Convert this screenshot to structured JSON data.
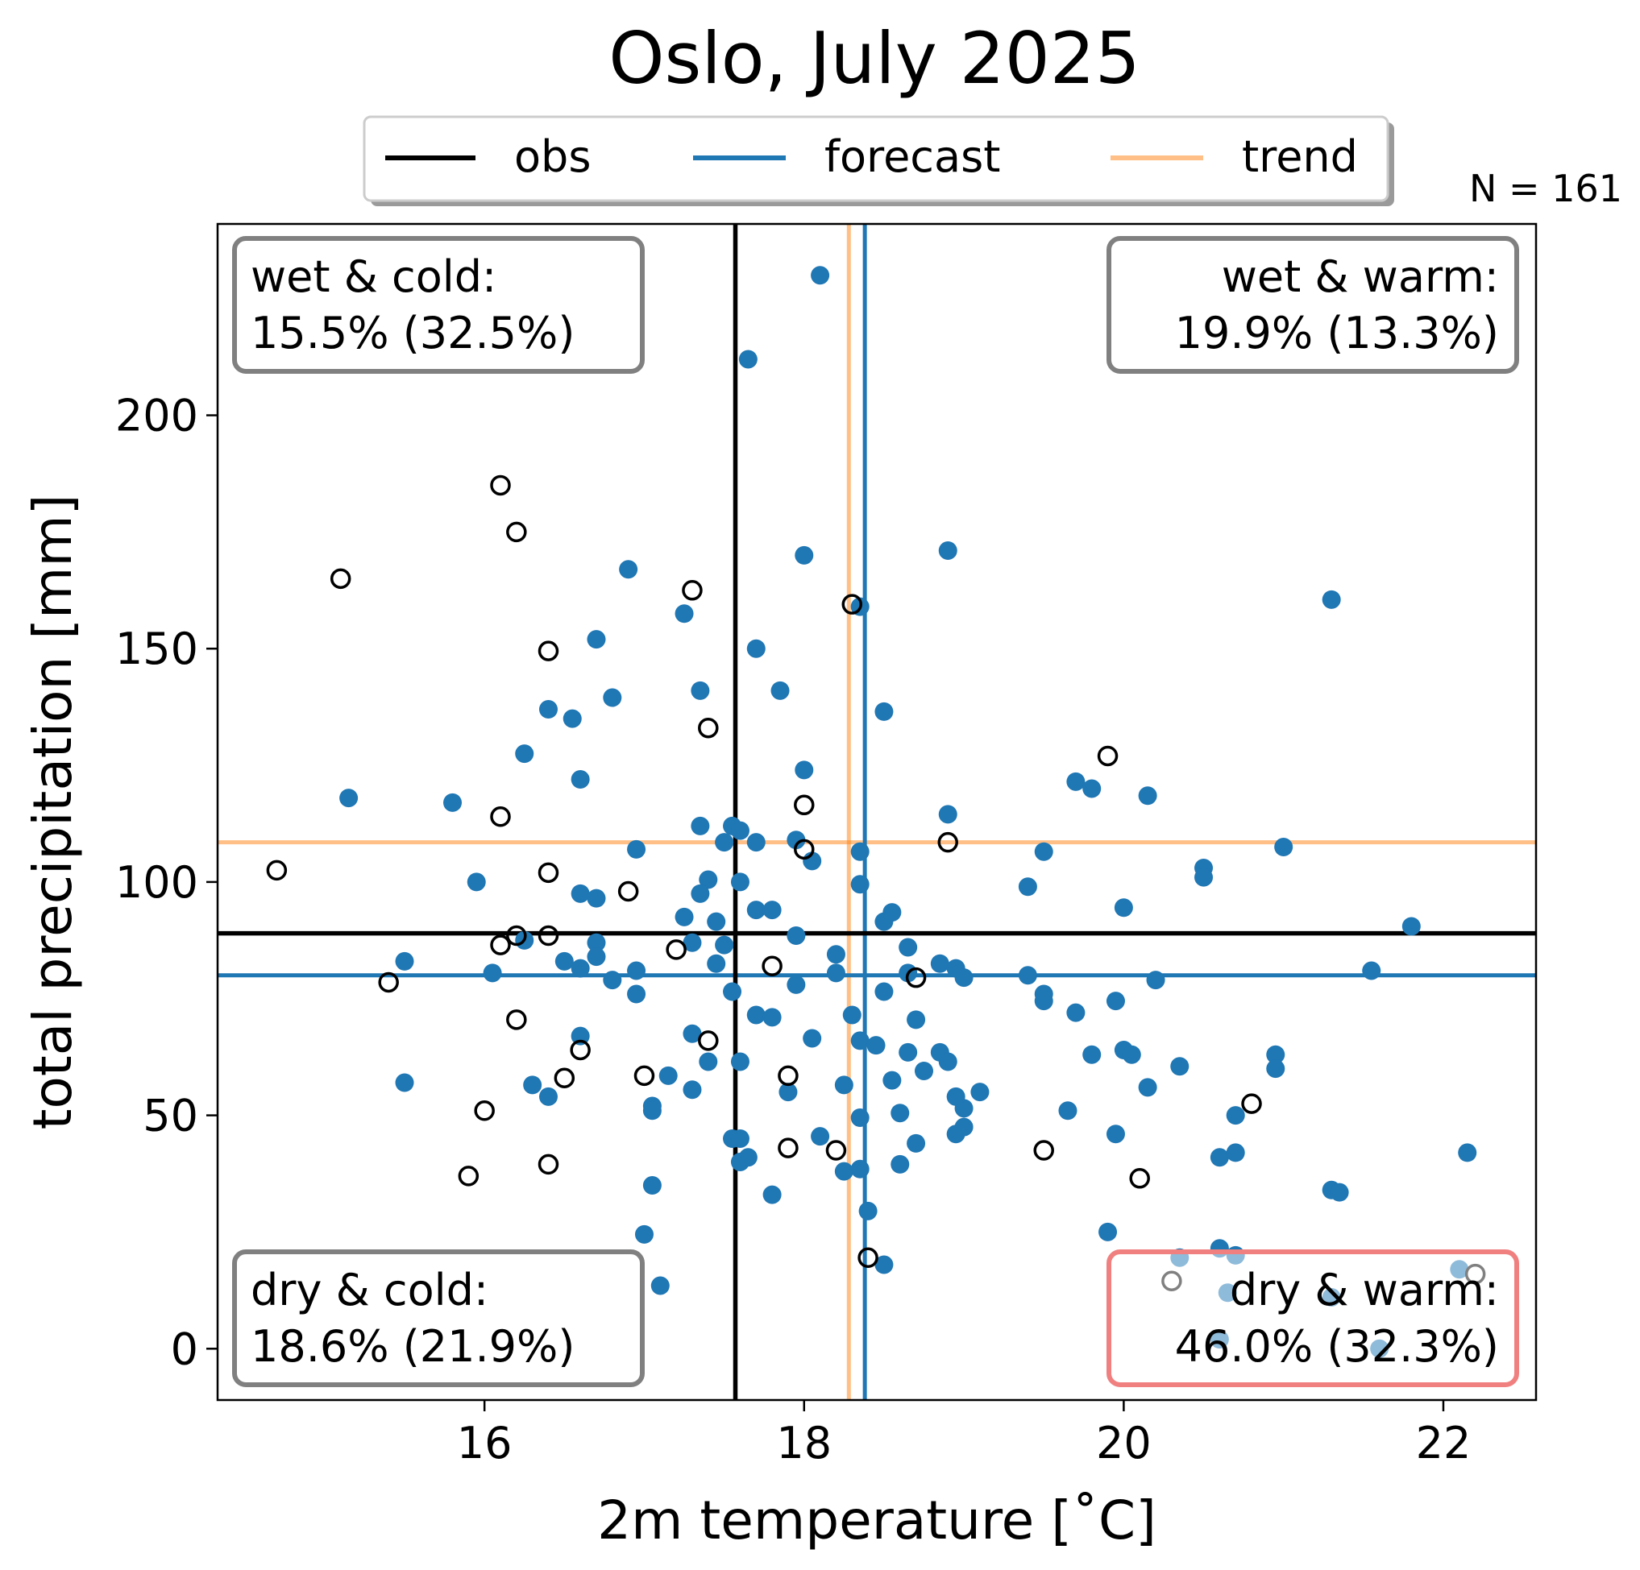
{
  "chart_data": {
    "type": "scatter",
    "title": "Oslo, July 2025",
    "xlabel": "2m temperature [˚C]",
    "ylabel": "total precipitation [mm]",
    "xlim": [
      14.33,
      22.58
    ],
    "ylim": [
      -11,
      241
    ],
    "xticks": [
      16,
      18,
      20,
      22
    ],
    "yticks": [
      0,
      50,
      100,
      150,
      200
    ],
    "grid": false,
    "sample_size": "N = 161",
    "legend": {
      "placement": "top-center",
      "entries": [
        {
          "label": "obs",
          "color": "#000000",
          "alpha": 1
        },
        {
          "label": "forecast",
          "color": "#1f77b4",
          "alpha": 1
        },
        {
          "label": "trend",
          "color": "#ff7f0e",
          "alpha": 0.5
        }
      ]
    },
    "reference_lines": {
      "obs": {
        "x": 17.57,
        "y": 89
      },
      "forecast": {
        "x": 18.38,
        "y": 80
      },
      "trend": {
        "x": 18.28,
        "y": 108.5
      }
    },
    "quadrants": [
      {
        "name": "wet & cold",
        "text": "wet & cold:",
        "value": "15.5% (32.5%)",
        "position": "top-left",
        "color": "#808080",
        "highlight": false
      },
      {
        "name": "wet & warm",
        "text": "wet & warm:",
        "value": "19.9% (13.3%)",
        "position": "top-right",
        "color": "#808080",
        "highlight": false
      },
      {
        "name": "dry & cold",
        "text": "dry & cold:",
        "value": "18.6% (21.9%)",
        "position": "bottom-left",
        "color": "#808080",
        "highlight": false
      },
      {
        "name": "dry & warm",
        "text": "dry & warm:",
        "value": "46.0% (32.3%)",
        "position": "bottom-right",
        "color": "#f08080",
        "highlight": true
      }
    ],
    "series": [
      {
        "name": "forecast",
        "marker": "filled-circle",
        "color": "#1f77b4",
        "points": [
          [
            18.1,
            230
          ],
          [
            17.65,
            212
          ],
          [
            18.9,
            171
          ],
          [
            18.0,
            170
          ],
          [
            16.9,
            167
          ],
          [
            21.3,
            160.5
          ],
          [
            18.35,
            159
          ],
          [
            17.25,
            157.5
          ],
          [
            16.7,
            152
          ],
          [
            17.7,
            150
          ],
          [
            17.35,
            141
          ],
          [
            17.85,
            141
          ],
          [
            16.8,
            139.5
          ],
          [
            16.4,
            137
          ],
          [
            16.55,
            135
          ],
          [
            18.5,
            136.5
          ],
          [
            16.25,
            127.5
          ],
          [
            18.0,
            124
          ],
          [
            16.6,
            122
          ],
          [
            19.7,
            121.5
          ],
          [
            19.8,
            120
          ],
          [
            20.15,
            118.5
          ],
          [
            15.15,
            118
          ],
          [
            15.8,
            117
          ],
          [
            18.9,
            114.5
          ],
          [
            17.35,
            112
          ],
          [
            17.55,
            112
          ],
          [
            17.6,
            111
          ],
          [
            17.5,
            108.5
          ],
          [
            17.7,
            108.5
          ],
          [
            17.95,
            109
          ],
          [
            18.35,
            106.5
          ],
          [
            19.5,
            106.5
          ],
          [
            16.95,
            107
          ],
          [
            21.0,
            107.5
          ],
          [
            18.05,
            104.5
          ],
          [
            20.5,
            103
          ],
          [
            20.5,
            101
          ],
          [
            17.4,
            100.5
          ],
          [
            17.6,
            100
          ],
          [
            15.95,
            100
          ],
          [
            18.35,
            99.5
          ],
          [
            19.4,
            99
          ],
          [
            16.6,
            97.5
          ],
          [
            16.7,
            96.5
          ],
          [
            17.35,
            97.5
          ],
          [
            17.7,
            94
          ],
          [
            17.8,
            94
          ],
          [
            20.0,
            94.5
          ],
          [
            18.55,
            93.5
          ],
          [
            17.25,
            92.5
          ],
          [
            17.45,
            91.5
          ],
          [
            18.5,
            91.5
          ],
          [
            21.8,
            90.5
          ],
          [
            17.95,
            88.5
          ],
          [
            16.7,
            87
          ],
          [
            17.3,
            87
          ],
          [
            16.25,
            87.5
          ],
          [
            18.65,
            86
          ],
          [
            17.5,
            86.5
          ],
          [
            18.2,
            84.5
          ],
          [
            16.7,
            84
          ],
          [
            16.5,
            83
          ],
          [
            15.5,
            83
          ],
          [
            17.45,
            82.5
          ],
          [
            18.85,
            82.5
          ],
          [
            16.6,
            81.5
          ],
          [
            16.95,
            81
          ],
          [
            16.05,
            80.5
          ],
          [
            18.2,
            80.5
          ],
          [
            18.65,
            80.5
          ],
          [
            18.95,
            81.5
          ],
          [
            19.4,
            80
          ],
          [
            21.55,
            81
          ],
          [
            19.0,
            79.5
          ],
          [
            16.8,
            79
          ],
          [
            17.95,
            78
          ],
          [
            20.2,
            79
          ],
          [
            18.5,
            76.5
          ],
          [
            16.95,
            76
          ],
          [
            17.55,
            76.5
          ],
          [
            19.5,
            76
          ],
          [
            19.5,
            74.5
          ],
          [
            19.95,
            74.5
          ],
          [
            19.7,
            72
          ],
          [
            18.3,
            71.5
          ],
          [
            17.7,
            71.5
          ],
          [
            17.8,
            71
          ],
          [
            18.7,
            70.5
          ],
          [
            16.6,
            67
          ],
          [
            17.3,
            67.5
          ],
          [
            18.05,
            66.5
          ],
          [
            18.35,
            66
          ],
          [
            18.45,
            65
          ],
          [
            20.0,
            64
          ],
          [
            18.65,
            63.5
          ],
          [
            18.85,
            63.5
          ],
          [
            19.8,
            63
          ],
          [
            20.05,
            63
          ],
          [
            20.95,
            63
          ],
          [
            18.9,
            61.5
          ],
          [
            17.4,
            61.5
          ],
          [
            17.6,
            61.5
          ],
          [
            20.35,
            60.5
          ],
          [
            20.95,
            60
          ],
          [
            18.75,
            59.5
          ],
          [
            17.15,
            58.5
          ],
          [
            18.55,
            57.5
          ],
          [
            15.5,
            57
          ],
          [
            16.3,
            56.5
          ],
          [
            18.25,
            56.5
          ],
          [
            20.15,
            56
          ],
          [
            17.3,
            55.5
          ],
          [
            17.9,
            55
          ],
          [
            19.1,
            55
          ],
          [
            18.95,
            54
          ],
          [
            16.4,
            54
          ],
          [
            17.05,
            52
          ],
          [
            19.0,
            51.5
          ],
          [
            17.05,
            51
          ],
          [
            18.6,
            50.5
          ],
          [
            19.65,
            51
          ],
          [
            18.35,
            49.5
          ],
          [
            20.7,
            50
          ],
          [
            19.0,
            47.5
          ],
          [
            18.95,
            46
          ],
          [
            19.95,
            46
          ],
          [
            17.55,
            45
          ],
          [
            17.6,
            45
          ],
          [
            18.1,
            45.5
          ],
          [
            18.7,
            44
          ],
          [
            17.65,
            41
          ],
          [
            17.6,
            40
          ],
          [
            20.6,
            41
          ],
          [
            20.7,
            42
          ],
          [
            22.15,
            42
          ],
          [
            18.35,
            38.5
          ],
          [
            18.25,
            38
          ],
          [
            18.6,
            39.5
          ],
          [
            17.8,
            33
          ],
          [
            17.05,
            35
          ],
          [
            21.3,
            34
          ],
          [
            21.35,
            33.5
          ],
          [
            18.4,
            29.5
          ],
          [
            17.0,
            24.5
          ],
          [
            19.9,
            25
          ],
          [
            20.6,
            21.5
          ],
          [
            20.7,
            20
          ],
          [
            20.35,
            19.5
          ],
          [
            18.5,
            18
          ],
          [
            17.1,
            13.5
          ],
          [
            22.1,
            17
          ],
          [
            20.65,
            12
          ],
          [
            21.3,
            11
          ],
          [
            20.6,
            2
          ],
          [
            21.6,
            0
          ]
        ]
      },
      {
        "name": "obs",
        "marker": "hollow-circle",
        "color": "#000000",
        "points": [
          [
            16.1,
            185
          ],
          [
            16.2,
            175
          ],
          [
            15.1,
            165
          ],
          [
            17.3,
            162.5
          ],
          [
            18.3,
            159.5
          ],
          [
            16.4,
            149.5
          ],
          [
            17.4,
            133
          ],
          [
            19.9,
            127
          ],
          [
            18.0,
            116.5
          ],
          [
            16.1,
            114
          ],
          [
            18.9,
            108.5
          ],
          [
            18.0,
            107
          ],
          [
            14.7,
            102.5
          ],
          [
            16.4,
            102
          ],
          [
            16.9,
            98
          ],
          [
            16.2,
            88.5
          ],
          [
            16.4,
            88.5
          ],
          [
            16.1,
            86.5
          ],
          [
            17.2,
            85.5
          ],
          [
            17.8,
            82
          ],
          [
            18.7,
            79.5
          ],
          [
            15.4,
            78.5
          ],
          [
            16.2,
            70.5
          ],
          [
            17.4,
            66
          ],
          [
            16.6,
            64
          ],
          [
            16.5,
            58
          ],
          [
            17.0,
            58.5
          ],
          [
            17.9,
            58.5
          ],
          [
            20.8,
            52.5
          ],
          [
            16.0,
            51
          ],
          [
            17.9,
            43
          ],
          [
            18.2,
            42.5
          ],
          [
            19.5,
            42.5
          ],
          [
            16.4,
            39.5
          ],
          [
            15.9,
            37
          ],
          [
            20.1,
            36.5
          ],
          [
            18.4,
            19.5
          ],
          [
            20.3,
            14.5
          ],
          [
            22.2,
            16
          ]
        ]
      }
    ]
  }
}
